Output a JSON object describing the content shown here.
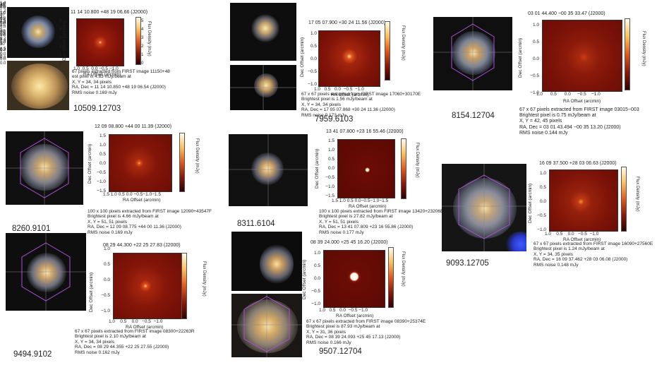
{
  "labels": {
    "ra_axis": "RA Offset (arcmin)",
    "dec_axis": "Dec Offset (arcmin)",
    "flux_axis": "Flux Density (mJy)"
  },
  "panels": [
    {
      "id": "10509",
      "name": "10509.12703",
      "coord": "11 14 10.800 +48 19 06.66 (J2000)",
      "yticks": [
        "5",
        "4",
        "3",
        "2",
        "1",
        "0"
      ],
      "xticks": [
        "1.0",
        "0.5",
        "0.0",
        "−0.5",
        "−1.0"
      ],
      "cbar_ticks": [
        "5",
        "4",
        "3",
        "2",
        "1",
        "0"
      ],
      "caption": [
        "67 pixels extracted from FIRST image 11150+48",
        "est pixel is 4.83 mJy/beam at",
        "X, Y       = 34, 34 pixels",
        "RA, Dec = 11 14 10.850 +48 19 06.54 (J2000)",
        "RMS noise 0.169 mJy"
      ]
    },
    {
      "id": "7959",
      "name": "7959.6103",
      "coord": "17 05 07.900 +30 24 11.56 (J2000)",
      "yticks": [
        "1.0",
        "0.5",
        "0.0",
        "−0.5",
        "−1.0"
      ],
      "xticks": [
        "1.0",
        "0.5",
        "0.0",
        "−0.5",
        "−1.0"
      ],
      "cbar_ticks": [
        "1.4",
        "1.2",
        "1.0",
        "0.8",
        "0.6",
        "0.4",
        "0.2",
        "0.0"
      ],
      "caption": [
        "67 x 67 pixels extracted from FIRST image 17060+30170E",
        "Brightest pixel is 1.56 mJy/beam at",
        "X, Y       = 34, 34 pixels",
        "RA, Dec = 17 05 07.868 +30 24 11.36 (J2000)",
        "RMS noise 0.173 mJy"
      ]
    },
    {
      "id": "8154",
      "name": "8154.12704",
      "coord": "03 01 44.400 −00 35 33.47 (J2000)",
      "yticks": [
        "1.0",
        "0.5",
        "0.0",
        "−0.5",
        "−1.0"
      ],
      "xticks": [
        "1.0",
        "0.5",
        "0.0",
        "−0.5",
        "−1.0"
      ],
      "cbar_ticks": [
        "0.6",
        "0.4",
        "0.2",
        "0.0"
      ],
      "caption": [
        "67 x 67 pixels extracted from FIRST image 03015−003",
        "Brightest pixel is 0.75 mJy/beam at",
        "X, Y       = 42, 45 pixels",
        "RA, Dec = 03 01 43.494 −00 35 13.20 (J2000)",
        "RMS noise 0.144 mJy"
      ]
    },
    {
      "id": "8260",
      "name": "8260.9101",
      "coord": "12 09 08.800 +44 00 11.39 (J2000)",
      "yticks": [
        "1.5",
        "1.0",
        "0.5",
        "0.0",
        "−0.5",
        "−1.0",
        "−1.5"
      ],
      "xticks": [
        "1.5",
        "1.0",
        "0.5",
        "0.0",
        "−0.5",
        "−1.0",
        "−1.5"
      ],
      "cbar_ticks": [
        "4",
        "3",
        "2",
        "1",
        "0"
      ],
      "caption": [
        "100 x 100 pixels extracted from FIRST image 12090+43547F",
        "Brightest pixel is 4.66 mJy/beam at",
        "X, Y       = 51, 51 pixels",
        "RA, Dec = 12 09 08.775 +44 00 11.36 (J2000)",
        "RMS noise 0.169 mJy"
      ]
    },
    {
      "id": "8311",
      "name": "8311.6104",
      "coord": "13 41 07.800 +23 16 55.46 (J2000)",
      "yticks": [
        "1.5",
        "1.0",
        "0.5",
        "0.0",
        "−0.5",
        "−1.0",
        "−1.5"
      ],
      "xticks": [
        "1.5",
        "1.0",
        "0.5",
        "0.0",
        "−0.5",
        "−1.0",
        "−1.5"
      ],
      "cbar_ticks": [
        "25",
        "20",
        "15",
        "10",
        "5",
        "0"
      ],
      "caption": [
        "100 x 100 pixels extracted from FIRST image 13420+23206E",
        "Brightest pixel is 27.82 mJy/beam at",
        "X, Y       = 51, 51 pixels",
        "RA, Dec = 13 41 07.809 +23 16 55.86 (J2000)",
        "RMS noise 0.177 mJy"
      ]
    },
    {
      "id": "9093",
      "name": "9093.12705",
      "coord": "16 09 37.500 +28 03 06.63 (J2000)",
      "yticks": [
        "1.0",
        "0.5",
        "0.0",
        "−0.5",
        "−1.0"
      ],
      "xticks": [
        "1.0",
        "0.5",
        "0.0",
        "−0.5",
        "−1.0"
      ],
      "cbar_ticks": [
        "1.2",
        "1.0",
        "0.8",
        "0.6",
        "0.4",
        "0.2",
        "0.0"
      ],
      "caption": [
        "67 x 67 pixels extracted from FIRST image 16090+27560E",
        "Brightest pixel is 1.24 mJy/beam at",
        "X, Y       = 34, 35 pixels",
        "RA, Dec = 16 09 37.462 +28 03 06.08 (J2000)",
        "RMS noise 0.148 mJy"
      ]
    },
    {
      "id": "9494",
      "name": "9494.9102",
      "coord": "08 29 44.300 +22 25 27.83 (J2000)",
      "yticks": [
        "1.0",
        "0.5",
        "0.0",
        "−0.5",
        "−1.0"
      ],
      "xticks": [
        "1.0",
        "0.5",
        "0.0",
        "−0.5",
        "−1.0"
      ],
      "cbar_ticks": [
        "2.0",
        "1.5",
        "1.0",
        "0.5",
        "0.0"
      ],
      "caption": [
        "67 x 67 pixels extracted from FIRST image 08300+22263R",
        "Brightest pixel is 2.10 mJy/beam at",
        "X, Y       = 34, 34 pixels",
        "RA, Dec = 08 29 44.355 +22 25 27.55 (J2000)",
        "RMS noise 0.162 mJy"
      ]
    },
    {
      "id": "9507",
      "name": "9507.12704",
      "coord": "08 39 24.000 +25 45 16.20 (J2000)",
      "yticks": [
        "1.0",
        "0.5",
        "0.0",
        "−0.5",
        "−1.0"
      ],
      "xticks": [
        "1.0",
        "0.5",
        "0.0",
        "−0.5",
        "−1.0"
      ],
      "cbar_ticks": [
        "80",
        "60",
        "40",
        "20",
        "0"
      ],
      "caption": [
        "67 x 67 pixels extracted from FIRST image 08390+25374E",
        "Brightest pixel is 87.93 mJy/beam at",
        "X, Y       = 31, 36 pixels",
        "RA, Dec = 08 39 24.093 +25 45 17.13 (J2000)",
        "RMS noise 0.166 mJy"
      ]
    }
  ]
}
